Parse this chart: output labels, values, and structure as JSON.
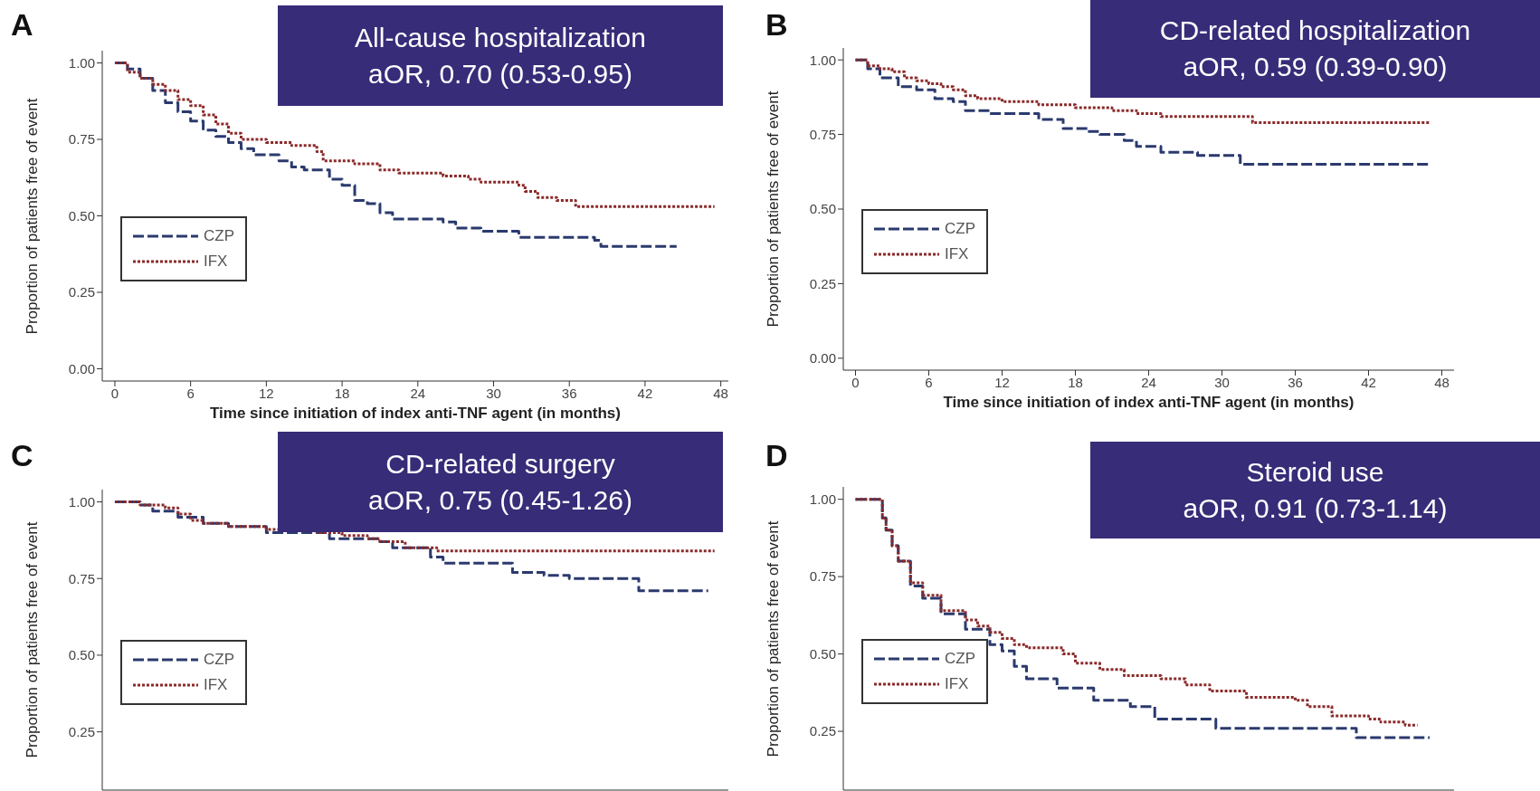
{
  "chart_data": [
    {
      "type": "step",
      "title": "All-cause hospitalization",
      "subtitle": "aOR, 0.70 (0.53-0.95)",
      "annotations": [
        "A"
      ],
      "xlabel": "Time since initiation of index anti-TNF agent (in months)",
      "ylabel": "Proportion of patients free of event",
      "xlim": [
        -1,
        48.6
      ],
      "xticks": [
        0,
        6,
        12,
        18,
        24,
        30,
        36,
        42,
        48
      ],
      "ylim": [
        -0.04,
        1.04
      ],
      "yticks": [
        {
          "value": 0,
          "label": "0.00"
        },
        {
          "value": 0.25,
          "label": "0.25"
        },
        {
          "value": 0.5,
          "label": "0.50"
        },
        {
          "value": 0.75,
          "label": "0.75"
        },
        {
          "value": 1,
          "label": "1.00"
        }
      ],
      "legend": "left",
      "grid": false,
      "series": [
        {
          "name": "CZP",
          "color": "#2b3a6e",
          "line_style": "dashed",
          "x": [
            0,
            1,
            2,
            3,
            4,
            5,
            6,
            7,
            8,
            9,
            10,
            11,
            13,
            14,
            15,
            17,
            18,
            19,
            20,
            21,
            22,
            26,
            27,
            29,
            32,
            38,
            38.5,
            44.5
          ],
          "values": [
            1,
            0.98,
            0.95,
            0.91,
            0.87,
            0.84,
            0.81,
            0.78,
            0.76,
            0.74,
            0.72,
            0.7,
            0.68,
            0.66,
            0.65,
            0.62,
            0.6,
            0.55,
            0.54,
            0.51,
            0.49,
            0.48,
            0.46,
            0.45,
            0.43,
            0.42,
            0.4,
            0.4
          ]
        },
        {
          "name": "IFX",
          "color": "#8b2a2a",
          "line_style": "dotted",
          "x": [
            0,
            1,
            2,
            3,
            4,
            5,
            6,
            7,
            8,
            9,
            10,
            12,
            14,
            16,
            16.5,
            19,
            21,
            22.5,
            26,
            28,
            29,
            32,
            32.5,
            33.5,
            35,
            36.5,
            47.5
          ],
          "values": [
            1,
            0.97,
            0.95,
            0.93,
            0.91,
            0.88,
            0.86,
            0.83,
            0.8,
            0.77,
            0.75,
            0.74,
            0.73,
            0.71,
            0.68,
            0.67,
            0.65,
            0.64,
            0.63,
            0.62,
            0.61,
            0.6,
            0.58,
            0.56,
            0.55,
            0.53,
            0.53
          ]
        }
      ]
    },
    {
      "type": "step",
      "title": "CD-related hospitalization",
      "subtitle": "aOR, 0.59 (0.39-0.90)",
      "annotations": [
        "B"
      ],
      "xlabel": "Time since initiation of index anti-TNF agent (in months)",
      "ylabel": "Proportion of patients free of event",
      "xlim": [
        -1,
        49
      ],
      "xticks": [
        0,
        6,
        12,
        18,
        24,
        30,
        36,
        42,
        48
      ],
      "ylim": [
        -0.04,
        1.04
      ],
      "yticks": [
        {
          "value": 0,
          "label": "0.00"
        },
        {
          "value": 0.25,
          "label": "0.25"
        },
        {
          "value": 0.5,
          "label": "0.50"
        },
        {
          "value": 0.75,
          "label": "0.75"
        },
        {
          "value": 1,
          "label": "1.00"
        }
      ],
      "legend": "left",
      "grid": false,
      "series": [
        {
          "name": "CZP",
          "color": "#2b3a6e",
          "line_style": "dashed",
          "x": [
            0,
            1,
            2,
            3.5,
            5,
            6.5,
            8,
            9,
            11,
            15,
            17,
            19,
            20,
            22,
            23,
            25,
            28,
            31.5,
            47
          ],
          "values": [
            1,
            0.97,
            0.94,
            0.91,
            0.9,
            0.87,
            0.86,
            0.83,
            0.82,
            0.8,
            0.77,
            0.76,
            0.75,
            0.73,
            0.71,
            0.69,
            0.68,
            0.65,
            0.65
          ]
        },
        {
          "name": "IFX",
          "color": "#8b2a2a",
          "line_style": "dotted",
          "x": [
            0,
            1,
            2,
            3,
            4,
            5,
            6,
            7,
            8,
            9,
            10,
            12,
            15,
            18,
            21,
            23,
            25,
            32.5,
            47
          ],
          "values": [
            1,
            0.98,
            0.97,
            0.96,
            0.94,
            0.93,
            0.92,
            0.91,
            0.9,
            0.88,
            0.87,
            0.86,
            0.85,
            0.84,
            0.83,
            0.82,
            0.81,
            0.79,
            0.79
          ]
        }
      ]
    },
    {
      "type": "step",
      "title": "CD-related surgery",
      "subtitle": "aOR, 0.75 (0.45-1.26)",
      "annotations": [
        "C"
      ],
      "ylabel": "Proportion of patients free of event",
      "xlim": [
        -1,
        48.6
      ],
      "ylim": [
        0.06,
        1.04
      ],
      "yticks": [
        {
          "value": 0.25,
          "label": "0.25"
        },
        {
          "value": 0.5,
          "label": "0.50"
        },
        {
          "value": 0.75,
          "label": "0.75"
        },
        {
          "value": 1,
          "label": "1.00"
        }
      ],
      "tick_labels": "y",
      "legend": "left",
      "grid": false,
      "series": [
        {
          "name": "CZP",
          "color": "#2b3a6e",
          "line_style": "dashed",
          "x": [
            0,
            2,
            3,
            5,
            7,
            9,
            12,
            17,
            21,
            22,
            25,
            26,
            31.5,
            34,
            36,
            41.5,
            47
          ],
          "values": [
            1,
            0.99,
            0.97,
            0.95,
            0.93,
            0.92,
            0.9,
            0.88,
            0.87,
            0.85,
            0.82,
            0.8,
            0.77,
            0.76,
            0.75,
            0.71,
            0.71
          ]
        },
        {
          "name": "IFX",
          "color": "#8b2a2a",
          "line_style": "dotted",
          "x": [
            0,
            2,
            4,
            5,
            6,
            7,
            9,
            12,
            16,
            18,
            20,
            21,
            23,
            25.5,
            47.5
          ],
          "values": [
            1,
            0.99,
            0.98,
            0.96,
            0.94,
            0.93,
            0.92,
            0.91,
            0.9,
            0.89,
            0.88,
            0.87,
            0.85,
            0.84,
            0.84
          ]
        }
      ]
    },
    {
      "type": "step",
      "title": "Steroid use",
      "subtitle": "aOR, 0.91 (0.73-1.14)",
      "annotations": [
        "D"
      ],
      "ylabel": "Proportion of patients free of event",
      "xlim": [
        -1,
        49
      ],
      "ylim": [
        0.06,
        1.04
      ],
      "yticks": [
        {
          "value": 0.25,
          "label": "0.25"
        },
        {
          "value": 0.5,
          "label": "0.50"
        },
        {
          "value": 0.75,
          "label": "0.75"
        },
        {
          "value": 1,
          "label": "1.00"
        }
      ],
      "tick_labels": "y",
      "legend": "left",
      "grid": false,
      "series": [
        {
          "name": "CZP",
          "color": "#2b3a6e",
          "line_style": "dashed",
          "x": [
            0,
            2,
            2.2,
            2.5,
            3,
            3.5,
            4.5,
            5.5,
            7,
            9,
            11,
            12,
            13,
            14,
            16.5,
            19.5,
            22.5,
            24.5,
            29.5,
            41,
            47
          ],
          "values": [
            1,
            1,
            0.94,
            0.9,
            0.85,
            0.8,
            0.72,
            0.68,
            0.63,
            0.58,
            0.53,
            0.51,
            0.46,
            0.42,
            0.39,
            0.35,
            0.33,
            0.29,
            0.26,
            0.23,
            0.23
          ]
        },
        {
          "name": "IFX",
          "color": "#8b2a2a",
          "line_style": "dotted",
          "x": [
            0,
            2,
            2.2,
            2.5,
            3,
            3.5,
            4.5,
            5.5,
            7,
            9,
            10,
            11,
            12,
            13,
            14,
            17,
            18,
            20,
            22,
            25,
            27,
            29,
            32,
            36,
            37,
            39,
            42,
            43,
            45,
            46
          ],
          "values": [
            1,
            1,
            0.94,
            0.9,
            0.85,
            0.8,
            0.73,
            0.69,
            0.64,
            0.61,
            0.59,
            0.57,
            0.55,
            0.53,
            0.52,
            0.5,
            0.47,
            0.45,
            0.43,
            0.42,
            0.4,
            0.38,
            0.36,
            0.35,
            0.33,
            0.3,
            0.29,
            0.28,
            0.27,
            0.27
          ]
        }
      ]
    }
  ]
}
